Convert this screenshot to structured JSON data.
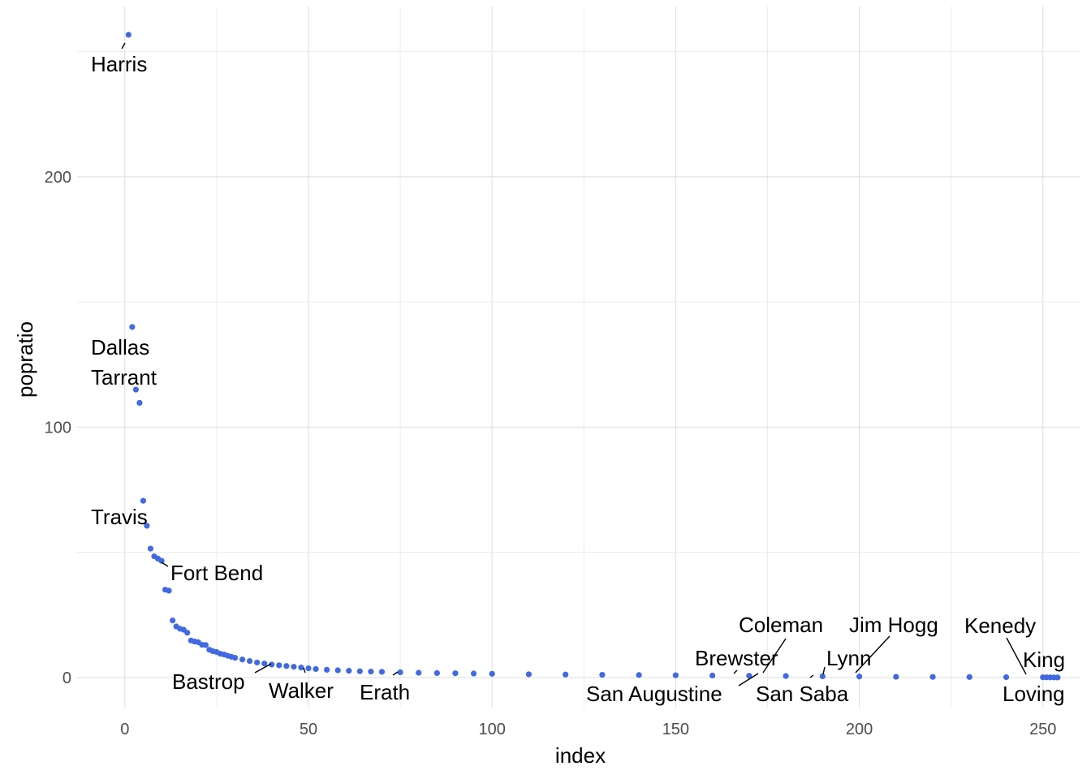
{
  "chart_data": {
    "type": "scatter",
    "title": "",
    "xlabel": "index",
    "ylabel": "popratio",
    "xlim": [
      -13,
      260
    ],
    "ylim": [
      -12,
      268
    ],
    "x_ticks": [
      0,
      50,
      100,
      150,
      200,
      250
    ],
    "y_ticks": [
      0,
      100,
      200
    ],
    "grid": true,
    "point_color": "#4169E1",
    "series": [
      {
        "x": [
          1,
          2,
          3,
          4,
          5,
          6,
          7,
          8,
          9,
          10,
          11,
          12,
          13,
          14,
          15,
          16,
          17,
          18,
          19,
          20,
          21,
          22,
          23,
          24,
          25,
          26,
          27,
          28,
          29,
          30,
          32,
          34,
          36,
          38,
          40,
          42,
          44,
          46,
          48,
          50,
          52,
          55,
          58,
          61,
          64,
          67,
          70,
          75,
          80,
          85,
          90,
          95,
          100,
          110,
          120,
          130,
          140,
          150,
          160,
          170,
          180,
          190,
          200,
          210,
          220,
          230,
          240,
          250,
          251,
          252,
          253,
          254
        ],
        "y": [
          256.7,
          140.0,
          115.0,
          109.7,
          70.6,
          60.6,
          51.5,
          48.4,
          47.5,
          46.6,
          35.1,
          34.7,
          22.8,
          20.4,
          19.5,
          19.1,
          17.9,
          14.8,
          14.4,
          14.1,
          13.1,
          13.0,
          11.1,
          10.5,
          10.2,
          9.5,
          9.2,
          8.7,
          8.3,
          7.9,
          7.2,
          6.6,
          6.0,
          5.6,
          5.2,
          4.9,
          4.6,
          4.3,
          4.0,
          3.7,
          3.4,
          3.1,
          2.9,
          2.7,
          2.5,
          2.4,
          2.3,
          2.1,
          1.9,
          1.8,
          1.7,
          1.6,
          1.5,
          1.3,
          1.2,
          1.1,
          1.0,
          0.9,
          0.8,
          0.7,
          0.6,
          0.5,
          0.4,
          0.3,
          0.25,
          0.2,
          0.15,
          0.1,
          0.08,
          0.06,
          0.04,
          0.02
        ]
      }
    ],
    "annotations": [
      {
        "label": "Harris",
        "x": 1,
        "y": 256.7
      },
      {
        "label": "Dallas",
        "x": 2,
        "y": 140.0
      },
      {
        "label": "Tarrant",
        "x": 3,
        "y": 115.0
      },
      {
        "label": "Travis",
        "x": 5,
        "y": 70.6
      },
      {
        "label": "Fort Bend",
        "x": 10,
        "y": 46.6
      },
      {
        "label": "Bastrop",
        "x": 41,
        "y": 5.0
      },
      {
        "label": "Walker",
        "x": 50,
        "y": 3.7
      },
      {
        "label": "Erath",
        "x": 76,
        "y": 2.0
      },
      {
        "label": "Coleman",
        "x": 179,
        "y": 0.6
      },
      {
        "label": "Brewster",
        "x": 172,
        "y": 0.7
      },
      {
        "label": "San Augustine",
        "x": 178,
        "y": 0.6
      },
      {
        "label": "San Saba",
        "x": 192,
        "y": 0.5
      },
      {
        "label": "Jim Hogg",
        "x": 203,
        "y": 0.4
      },
      {
        "label": "Lynn",
        "x": 195,
        "y": 0.5
      },
      {
        "label": "Kenedy",
        "x": 251,
        "y": 0.08
      },
      {
        "label": "King",
        "x": 253,
        "y": 0.04
      },
      {
        "label": "Loving",
        "x": 254,
        "y": 0.02
      }
    ]
  }
}
